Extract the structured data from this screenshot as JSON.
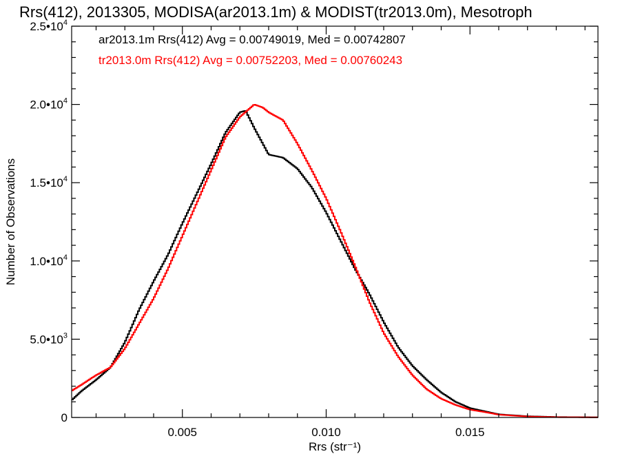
{
  "chart_data": {
    "type": "line",
    "title": "Rrs(412), 2013305, MODISA(ar2013.1m) & MODIST(tr2013.0m), Mesotroph",
    "xlabel": "Rrs (str⁻¹)",
    "ylabel": "Number of Observations",
    "xlim": [
      0.00115,
      0.01945
    ],
    "ylim": [
      0,
      25000
    ],
    "grid": false,
    "step": true,
    "x_ticks": [
      {
        "value": 0.005,
        "label": "0.005"
      },
      {
        "value": 0.01,
        "label": "0.010"
      },
      {
        "value": 0.015,
        "label": "0.015"
      }
    ],
    "y_ticks": [
      {
        "value": 0,
        "base": "0",
        "exp": ""
      },
      {
        "value": 5000,
        "base": "5.0•1",
        "exp": "3"
      },
      {
        "value": 10000,
        "base": "1.0•1",
        "exp": "4"
      },
      {
        "value": 15000,
        "base": "1.5•1",
        "exp": "4"
      },
      {
        "value": 20000,
        "base": "2.0•1",
        "exp": "4"
      },
      {
        "value": 25000,
        "base": "2.5•1",
        "exp": "4"
      }
    ],
    "series": [
      {
        "name": "ar2013.1m",
        "color": "#000000",
        "legend": "ar2013.1m Rrs(412) Avg = 0.00749019, Med = 0.00742807",
        "x": [
          0.00115,
          0.0015,
          0.002,
          0.0025,
          0.003,
          0.0035,
          0.004,
          0.0045,
          0.005,
          0.0055,
          0.006,
          0.0065,
          0.007,
          0.0072,
          0.0075,
          0.008,
          0.0085,
          0.009,
          0.0095,
          0.01,
          0.0105,
          0.011,
          0.0115,
          0.012,
          0.0125,
          0.013,
          0.0135,
          0.014,
          0.0145,
          0.015,
          0.0155,
          0.016,
          0.017,
          0.018,
          0.01945
        ],
        "values": [
          1100,
          1700,
          2400,
          3200,
          4800,
          6900,
          8700,
          10400,
          12400,
          14300,
          16200,
          18200,
          19500,
          19600,
          18500,
          16800,
          16600,
          15900,
          14700,
          13100,
          11300,
          9500,
          7900,
          6100,
          4500,
          3300,
          2400,
          1600,
          1000,
          600,
          400,
          200,
          80,
          30,
          10
        ]
      },
      {
        "name": "tr2013.0m",
        "color": "#ff0000",
        "legend": "tr2013.0m Rrs(412) Avg = 0.00752203, Med = 0.00760243",
        "x": [
          0.00115,
          0.0015,
          0.002,
          0.0025,
          0.003,
          0.0035,
          0.004,
          0.0045,
          0.005,
          0.0055,
          0.006,
          0.0065,
          0.007,
          0.0075,
          0.0078,
          0.008,
          0.0085,
          0.009,
          0.0095,
          0.01,
          0.0105,
          0.011,
          0.0115,
          0.012,
          0.0125,
          0.013,
          0.0135,
          0.014,
          0.0145,
          0.015,
          0.0155,
          0.016,
          0.017,
          0.018,
          0.01945
        ],
        "values": [
          1700,
          2100,
          2700,
          3200,
          4400,
          6000,
          7600,
          9500,
          11600,
          13700,
          15800,
          17900,
          19200,
          20000,
          19800,
          19500,
          19000,
          17500,
          15800,
          14000,
          11900,
          9700,
          7400,
          5400,
          3900,
          2700,
          1800,
          1200,
          800,
          500,
          350,
          180,
          60,
          20,
          10
        ]
      }
    ]
  }
}
